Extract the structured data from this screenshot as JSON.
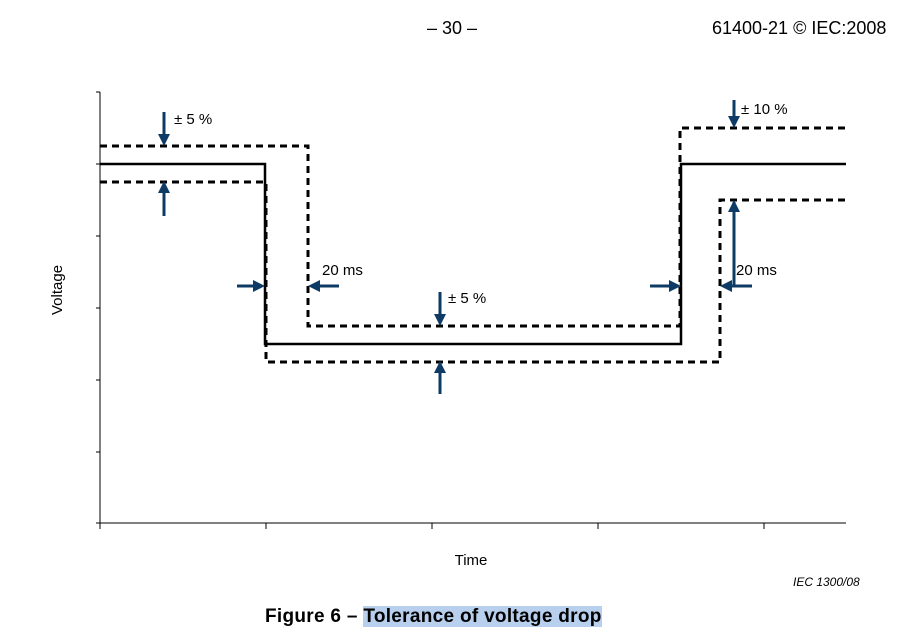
{
  "header": {
    "page_number": "– 30 –",
    "standard_ref": "61400-21 © IEC:2008"
  },
  "figure": {
    "code": "IEC   1300/08",
    "caption_number": "Figure 6 – ",
    "caption_title": "Tolerance of voltage drop"
  },
  "chart_data": {
    "type": "line",
    "xlabel": "Time",
    "ylabel": "Voltage",
    "grid": false,
    "series": [],
    "annotations": [
      {
        "text": "± 5 %"
      },
      {
        "text": "20 ms"
      },
      {
        "text": "± 5 %"
      },
      {
        "text": "± 10 %"
      },
      {
        "text": "20 ms"
      }
    ]
  }
}
